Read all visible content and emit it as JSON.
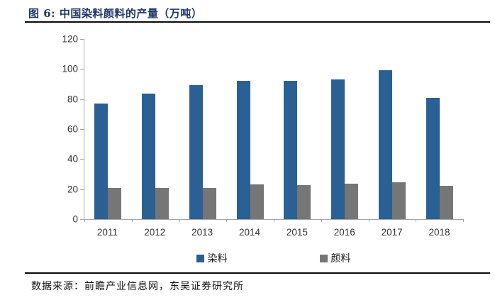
{
  "header": {
    "title": "图 6:  中国染料颜料的产量（万吨）"
  },
  "chart_data": {
    "type": "bar",
    "title": "中国染料颜料的产量（万吨）",
    "categories": [
      "2011",
      "2012",
      "2013",
      "2014",
      "2015",
      "2016",
      "2017",
      "2018"
    ],
    "series": [
      {
        "id": "dye",
        "name": "染料",
        "color": "#2A6093",
        "values": [
          77,
          83.5,
          89.5,
          92,
          92,
          93,
          99,
          81
        ]
      },
      {
        "id": "pigment",
        "name": "颜料",
        "color": "#767676",
        "values": [
          21,
          21,
          21,
          23,
          22.8,
          23.5,
          24.5,
          22
        ]
      }
    ],
    "xlabel": "",
    "ylabel": "",
    "ylim": [
      0,
      120
    ],
    "yticks": [
      0,
      20,
      40,
      60,
      80,
      100,
      120
    ],
    "grid": false,
    "legend_position": "bottom",
    "axis_color": "#A6A6A6"
  },
  "footer": {
    "source": "数据来源：前瞻产业信息网，东吴证券研究所"
  },
  "colors": {
    "title_text": "#1F3864",
    "rule": "#0a0a0a",
    "tick_text": "#333333"
  }
}
